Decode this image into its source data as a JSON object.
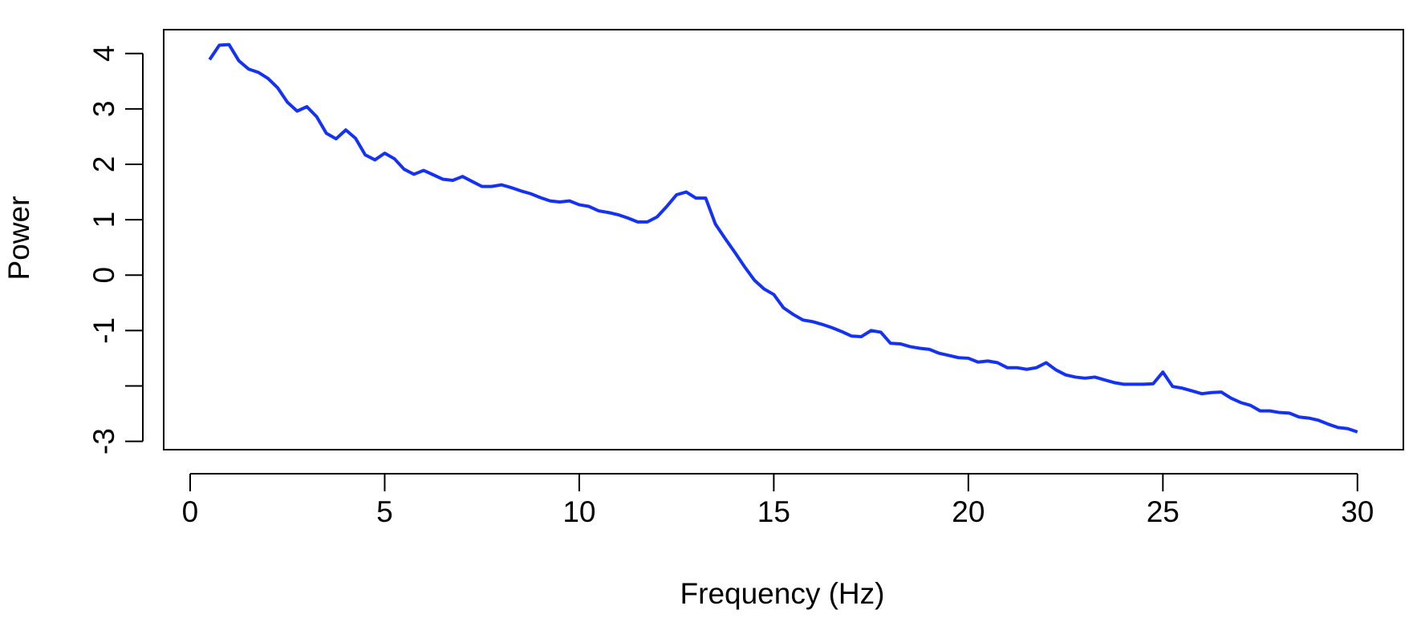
{
  "chart_data": {
    "type": "line",
    "x_label": "Frequency (Hz)",
    "y_label": "Power",
    "x": [
      0.5,
      0.75,
      1,
      1.25,
      1.5,
      1.75,
      2,
      2.25,
      2.5,
      2.75,
      3,
      3.25,
      3.5,
      3.75,
      4,
      4.25,
      4.5,
      4.75,
      5,
      5.25,
      5.5,
      5.75,
      6,
      6.25,
      6.5,
      6.75,
      7,
      7.25,
      7.5,
      7.75,
      8,
      8.25,
      8.5,
      8.75,
      9,
      9.25,
      9.5,
      9.75,
      10,
      10.25,
      10.5,
      10.75,
      11,
      11.25,
      11.5,
      11.75,
      12,
      12.25,
      12.5,
      12.75,
      13,
      13.25,
      13.5,
      13.75,
      14,
      14.25,
      14.5,
      14.75,
      15,
      15.25,
      15.5,
      15.75,
      16,
      16.25,
      16.5,
      16.75,
      17,
      17.25,
      17.5,
      17.75,
      18,
      18.25,
      18.5,
      18.75,
      19,
      19.25,
      19.5,
      19.75,
      20,
      20.25,
      20.5,
      20.75,
      21,
      21.25,
      21.5,
      21.75,
      22,
      22.25,
      22.5,
      22.75,
      23,
      23.25,
      23.5,
      23.75,
      24,
      24.25,
      24.5,
      24.75,
      25,
      25.25,
      25.5,
      25.75,
      26,
      26.25,
      26.5,
      26.75,
      27,
      27.25,
      27.5,
      27.75,
      28,
      28.25,
      28.5,
      28.75,
      29,
      29.25,
      29.5,
      29.75,
      30
    ],
    "series": [
      {
        "color": "#1432f5",
        "values": [
          3.89,
          4.15,
          4.16,
          3.87,
          3.72,
          3.66,
          3.55,
          3.38,
          3.12,
          2.96,
          3.04,
          2.86,
          2.56,
          2.46,
          2.62,
          2.47,
          2.17,
          2.08,
          2.2,
          2.1,
          1.91,
          1.82,
          1.89,
          1.81,
          1.73,
          1.71,
          1.78,
          1.69,
          1.6,
          1.6,
          1.63,
          1.58,
          1.52,
          1.47,
          1.4,
          1.34,
          1.32,
          1.34,
          1.27,
          1.24,
          1.16,
          1.13,
          1.09,
          1.03,
          0.96,
          0.96,
          1.05,
          1.24,
          1.45,
          1.5,
          1.39,
          1.39,
          0.92,
          0.66,
          0.41,
          0.15,
          -0.09,
          -0.25,
          -0.35,
          -0.59,
          -0.71,
          -0.81,
          -0.84,
          -0.89,
          -0.95,
          -1.02,
          -1.1,
          -1.11,
          -1.0,
          -1.03,
          -1.23,
          -1.24,
          -1.29,
          -1.32,
          -1.34,
          -1.41,
          -1.45,
          -1.49,
          -1.5,
          -1.57,
          -1.55,
          -1.58,
          -1.67,
          -1.67,
          -1.7,
          -1.67,
          -1.58,
          -1.71,
          -1.8,
          -1.84,
          -1.86,
          -1.84,
          -1.89,
          -1.94,
          -1.97,
          -1.97,
          -1.97,
          -1.96,
          -1.75,
          -2.01,
          -2.04,
          -2.09,
          -2.14,
          -2.12,
          -2.11,
          -2.22,
          -2.3,
          -2.35,
          -2.45,
          -2.45,
          -2.48,
          -2.49,
          -2.56,
          -2.58,
          -2.62,
          -2.69,
          -2.75,
          -2.77,
          -2.83
        ]
      }
    ],
    "xlim": [
      -0.68,
      31.18
    ],
    "ylim": [
      -3.15,
      4.43
    ],
    "xticks": [
      0,
      5,
      10,
      15,
      20,
      25,
      30
    ],
    "yticks": [
      4,
      3,
      2,
      1,
      0,
      -1,
      {
        "value": -2,
        "label": null
      },
      -3
    ]
  }
}
